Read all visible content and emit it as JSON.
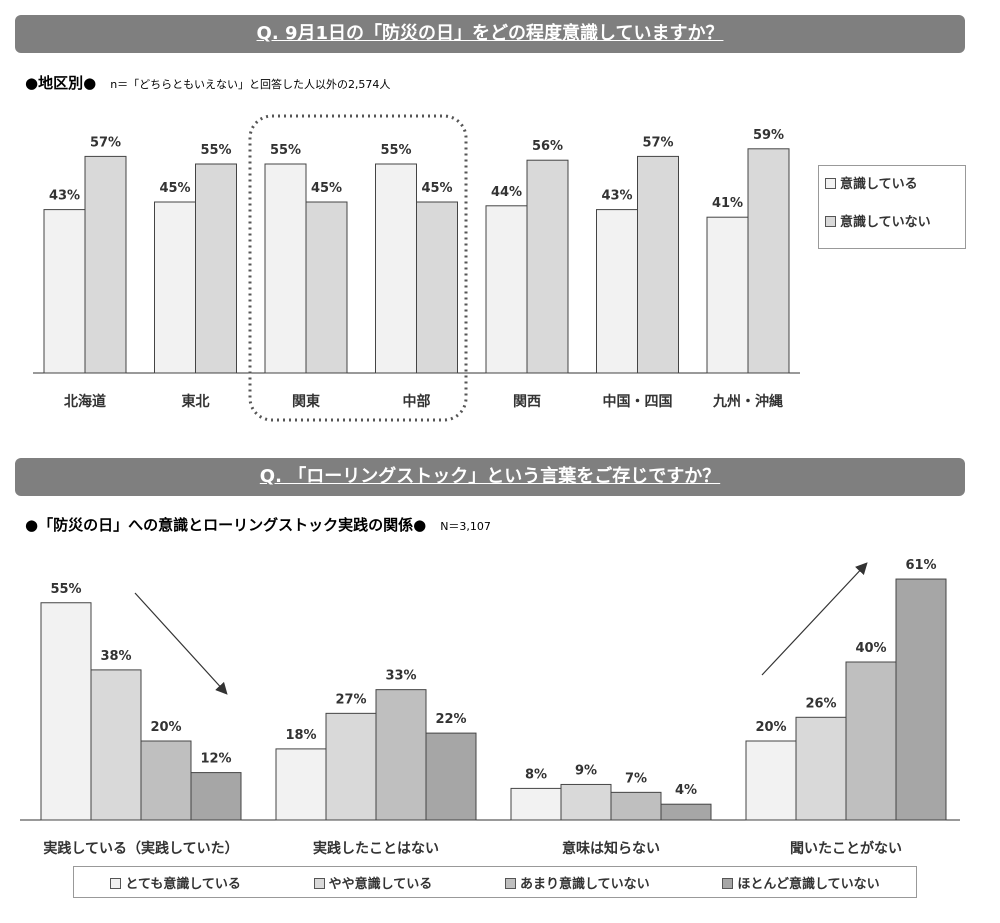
{
  "header1": "Q. 9月1日の「防災の日」をどの程度意識していますか？",
  "sub1": {
    "title": "●地区別●",
    "note": "n＝「どちらともいえない」と回答した人以外の2,574人"
  },
  "header2": "Q. 「ローリングストック」という言葉をご存じですか？",
  "sub2": {
    "title": "●「防災の日」への意識とローリングストック実践の関係●",
    "note": "N＝3,107"
  },
  "chart_data": [
    {
      "type": "bar",
      "categories": [
        "北海道",
        "東北",
        "関東",
        "中部",
        "関西",
        "中国・四国",
        "九州・沖縄"
      ],
      "series": [
        {
          "name": "意識している",
          "values": [
            43,
            45,
            55,
            55,
            44,
            43,
            41
          ],
          "color": "#f2f2f2"
        },
        {
          "name": "意識していない",
          "values": [
            57,
            55,
            45,
            45,
            56,
            57,
            59
          ],
          "color": "#d9d9d9"
        }
      ],
      "unit": "%",
      "legend": "right",
      "highlight": [
        "関東",
        "中部"
      ]
    },
    {
      "type": "bar",
      "categories": [
        "実践している（実践していた）",
        "実践したことはない",
        "意味は知らない",
        "聞いたことがない"
      ],
      "series": [
        {
          "name": "とても意識している",
          "values": [
            55,
            18,
            8,
            20
          ],
          "color": "#f2f2f2"
        },
        {
          "name": "やや意識している",
          "values": [
            38,
            27,
            9,
            26
          ],
          "color": "#d9d9d9"
        },
        {
          "name": "あまり意識していない",
          "values": [
            20,
            33,
            7,
            40
          ],
          "color": "#bfbfbf"
        },
        {
          "name": "ほとんど意識していない",
          "values": [
            12,
            22,
            4,
            61
          ],
          "color": "#a6a6a6"
        }
      ],
      "unit": "%",
      "legend": "bottom"
    }
  ]
}
